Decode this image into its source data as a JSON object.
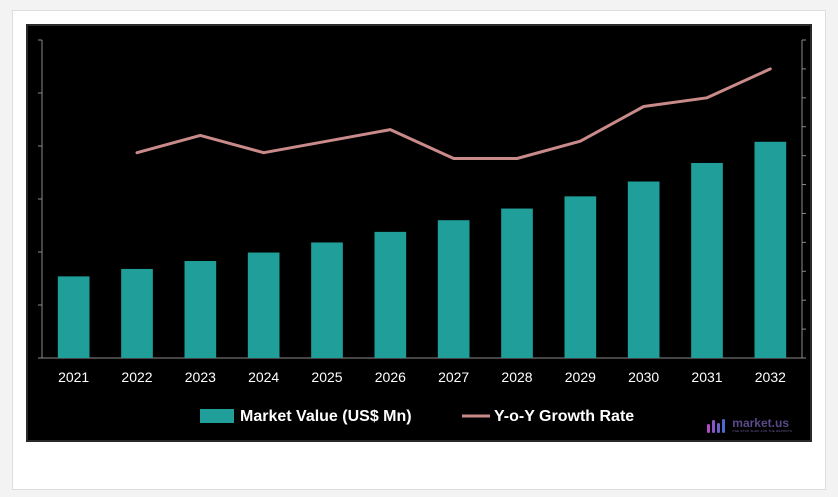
{
  "chart_data": {
    "type": "bar",
    "categories": [
      "2021",
      "2022",
      "2023",
      "2024",
      "2025",
      "2026",
      "2027",
      "2028",
      "2029",
      "2030",
      "2031",
      "2032"
    ],
    "series": [
      {
        "name": "Market Value (US$ Mn)",
        "type": "bar",
        "axis": "left",
        "color": "#1f9e9a",
        "values": [
          15.4,
          16.8,
          18.3,
          19.9,
          21.8,
          23.8,
          26.0,
          28.2,
          30.5,
          33.3,
          36.8,
          40.8
        ]
      },
      {
        "name": "Y-o-Y Growth Rate",
        "type": "line",
        "axis": "right",
        "color": "#c98a8a",
        "values": [
          null,
          6.1,
          6.7,
          6.1,
          6.5,
          6.9,
          5.9,
          5.9,
          6.5,
          7.7,
          8.0,
          9.0
        ]
      }
    ],
    "left_axis": {
      "ylim": [
        0,
        60
      ],
      "tick_step": 10,
      "tick_labels_visible": false
    },
    "right_axis": {
      "ylim": [
        -1,
        10
      ],
      "tick_step": 1,
      "tick_labels_visible": false
    },
    "grid": false,
    "legend_position": "bottom-center",
    "background": "#000000"
  },
  "branding": {
    "name": "market.us",
    "tagline": "ONE STOP SHOP FOR THE REPORTS",
    "color": "#5a4a8a"
  }
}
